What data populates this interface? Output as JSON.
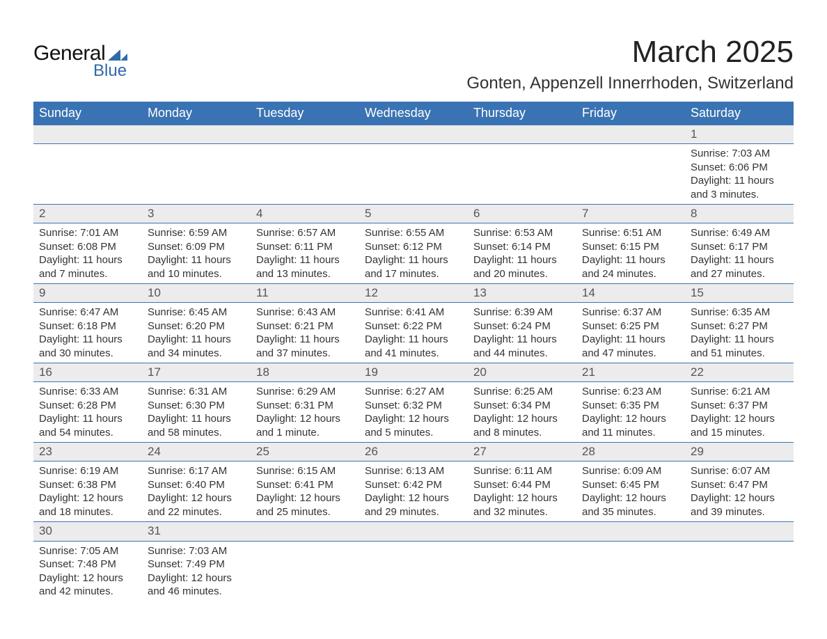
{
  "logo": {
    "general": "General",
    "blue": "Blue",
    "shape_color": "#2f6aa9"
  },
  "title": "March 2025",
  "location": "Gonten, Appenzell Innerrhoden, Switzerland",
  "colors": {
    "header_bg": "#3a73b3",
    "header_text": "#ffffff",
    "daynum_bg": "#ececec",
    "border": "#3a73b3",
    "body_text": "#333333"
  },
  "weekdays": [
    "Sunday",
    "Monday",
    "Tuesday",
    "Wednesday",
    "Thursday",
    "Friday",
    "Saturday"
  ],
  "weeks": [
    {
      "nums": [
        "",
        "",
        "",
        "",
        "",
        "",
        "1"
      ],
      "cells": [
        null,
        null,
        null,
        null,
        null,
        null,
        {
          "sunrise": "Sunrise: 7:03 AM",
          "sunset": "Sunset: 6:06 PM",
          "d1": "Daylight: 11 hours",
          "d2": "and 3 minutes."
        }
      ]
    },
    {
      "nums": [
        "2",
        "3",
        "4",
        "5",
        "6",
        "7",
        "8"
      ],
      "cells": [
        {
          "sunrise": "Sunrise: 7:01 AM",
          "sunset": "Sunset: 6:08 PM",
          "d1": "Daylight: 11 hours",
          "d2": "and 7 minutes."
        },
        {
          "sunrise": "Sunrise: 6:59 AM",
          "sunset": "Sunset: 6:09 PM",
          "d1": "Daylight: 11 hours",
          "d2": "and 10 minutes."
        },
        {
          "sunrise": "Sunrise: 6:57 AM",
          "sunset": "Sunset: 6:11 PM",
          "d1": "Daylight: 11 hours",
          "d2": "and 13 minutes."
        },
        {
          "sunrise": "Sunrise: 6:55 AM",
          "sunset": "Sunset: 6:12 PM",
          "d1": "Daylight: 11 hours",
          "d2": "and 17 minutes."
        },
        {
          "sunrise": "Sunrise: 6:53 AM",
          "sunset": "Sunset: 6:14 PM",
          "d1": "Daylight: 11 hours",
          "d2": "and 20 minutes."
        },
        {
          "sunrise": "Sunrise: 6:51 AM",
          "sunset": "Sunset: 6:15 PM",
          "d1": "Daylight: 11 hours",
          "d2": "and 24 minutes."
        },
        {
          "sunrise": "Sunrise: 6:49 AM",
          "sunset": "Sunset: 6:17 PM",
          "d1": "Daylight: 11 hours",
          "d2": "and 27 minutes."
        }
      ]
    },
    {
      "nums": [
        "9",
        "10",
        "11",
        "12",
        "13",
        "14",
        "15"
      ],
      "cells": [
        {
          "sunrise": "Sunrise: 6:47 AM",
          "sunset": "Sunset: 6:18 PM",
          "d1": "Daylight: 11 hours",
          "d2": "and 30 minutes."
        },
        {
          "sunrise": "Sunrise: 6:45 AM",
          "sunset": "Sunset: 6:20 PM",
          "d1": "Daylight: 11 hours",
          "d2": "and 34 minutes."
        },
        {
          "sunrise": "Sunrise: 6:43 AM",
          "sunset": "Sunset: 6:21 PM",
          "d1": "Daylight: 11 hours",
          "d2": "and 37 minutes."
        },
        {
          "sunrise": "Sunrise: 6:41 AM",
          "sunset": "Sunset: 6:22 PM",
          "d1": "Daylight: 11 hours",
          "d2": "and 41 minutes."
        },
        {
          "sunrise": "Sunrise: 6:39 AM",
          "sunset": "Sunset: 6:24 PM",
          "d1": "Daylight: 11 hours",
          "d2": "and 44 minutes."
        },
        {
          "sunrise": "Sunrise: 6:37 AM",
          "sunset": "Sunset: 6:25 PM",
          "d1": "Daylight: 11 hours",
          "d2": "and 47 minutes."
        },
        {
          "sunrise": "Sunrise: 6:35 AM",
          "sunset": "Sunset: 6:27 PM",
          "d1": "Daylight: 11 hours",
          "d2": "and 51 minutes."
        }
      ]
    },
    {
      "nums": [
        "16",
        "17",
        "18",
        "19",
        "20",
        "21",
        "22"
      ],
      "cells": [
        {
          "sunrise": "Sunrise: 6:33 AM",
          "sunset": "Sunset: 6:28 PM",
          "d1": "Daylight: 11 hours",
          "d2": "and 54 minutes."
        },
        {
          "sunrise": "Sunrise: 6:31 AM",
          "sunset": "Sunset: 6:30 PM",
          "d1": "Daylight: 11 hours",
          "d2": "and 58 minutes."
        },
        {
          "sunrise": "Sunrise: 6:29 AM",
          "sunset": "Sunset: 6:31 PM",
          "d1": "Daylight: 12 hours",
          "d2": "and 1 minute."
        },
        {
          "sunrise": "Sunrise: 6:27 AM",
          "sunset": "Sunset: 6:32 PM",
          "d1": "Daylight: 12 hours",
          "d2": "and 5 minutes."
        },
        {
          "sunrise": "Sunrise: 6:25 AM",
          "sunset": "Sunset: 6:34 PM",
          "d1": "Daylight: 12 hours",
          "d2": "and 8 minutes."
        },
        {
          "sunrise": "Sunrise: 6:23 AM",
          "sunset": "Sunset: 6:35 PM",
          "d1": "Daylight: 12 hours",
          "d2": "and 11 minutes."
        },
        {
          "sunrise": "Sunrise: 6:21 AM",
          "sunset": "Sunset: 6:37 PM",
          "d1": "Daylight: 12 hours",
          "d2": "and 15 minutes."
        }
      ]
    },
    {
      "nums": [
        "23",
        "24",
        "25",
        "26",
        "27",
        "28",
        "29"
      ],
      "cells": [
        {
          "sunrise": "Sunrise: 6:19 AM",
          "sunset": "Sunset: 6:38 PM",
          "d1": "Daylight: 12 hours",
          "d2": "and 18 minutes."
        },
        {
          "sunrise": "Sunrise: 6:17 AM",
          "sunset": "Sunset: 6:40 PM",
          "d1": "Daylight: 12 hours",
          "d2": "and 22 minutes."
        },
        {
          "sunrise": "Sunrise: 6:15 AM",
          "sunset": "Sunset: 6:41 PM",
          "d1": "Daylight: 12 hours",
          "d2": "and 25 minutes."
        },
        {
          "sunrise": "Sunrise: 6:13 AM",
          "sunset": "Sunset: 6:42 PM",
          "d1": "Daylight: 12 hours",
          "d2": "and 29 minutes."
        },
        {
          "sunrise": "Sunrise: 6:11 AM",
          "sunset": "Sunset: 6:44 PM",
          "d1": "Daylight: 12 hours",
          "d2": "and 32 minutes."
        },
        {
          "sunrise": "Sunrise: 6:09 AM",
          "sunset": "Sunset: 6:45 PM",
          "d1": "Daylight: 12 hours",
          "d2": "and 35 minutes."
        },
        {
          "sunrise": "Sunrise: 6:07 AM",
          "sunset": "Sunset: 6:47 PM",
          "d1": "Daylight: 12 hours",
          "d2": "and 39 minutes."
        }
      ]
    },
    {
      "nums": [
        "30",
        "31",
        "",
        "",
        "",
        "",
        ""
      ],
      "cells": [
        {
          "sunrise": "Sunrise: 7:05 AM",
          "sunset": "Sunset: 7:48 PM",
          "d1": "Daylight: 12 hours",
          "d2": "and 42 minutes."
        },
        {
          "sunrise": "Sunrise: 7:03 AM",
          "sunset": "Sunset: 7:49 PM",
          "d1": "Daylight: 12 hours",
          "d2": "and 46 minutes."
        },
        null,
        null,
        null,
        null,
        null
      ]
    }
  ]
}
